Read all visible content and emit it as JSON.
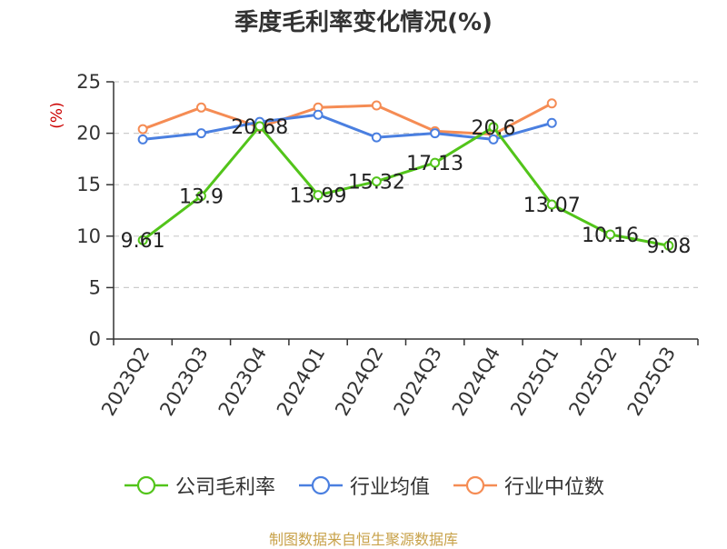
{
  "colors": {
    "axis": "#333333",
    "grid": "#cccccc",
    "ylabel": "#cc0000",
    "footer": "#c8a24a"
  },
  "chart_data": {
    "type": "line",
    "title": "季度毛利率变化情况(%)",
    "ylabel": "(%)",
    "xlabel": "",
    "ylim": [
      0,
      25
    ],
    "yticks": [
      0,
      5,
      10,
      15,
      20,
      25
    ],
    "grid": true,
    "legend_position": "bottom",
    "categories": [
      "2023Q2",
      "2023Q3",
      "2023Q4",
      "2024Q1",
      "2024Q2",
      "2024Q3",
      "2024Q4",
      "2025Q1",
      "2025Q2",
      "2025Q3"
    ],
    "series": [
      {
        "name": "公司毛利率",
        "color": "#52c41a",
        "values": [
          9.61,
          13.9,
          20.68,
          13.99,
          15.32,
          17.13,
          20.6,
          13.07,
          10.16,
          9.08
        ],
        "labels": [
          "9.61",
          "13.9",
          "20.68",
          "13.99",
          "15.32",
          "17.13",
          "20.6",
          "13.07",
          "10.16",
          "9.08"
        ]
      },
      {
        "name": "行业均值",
        "color": "#4a7fe0",
        "values": [
          19.4,
          20.0,
          21.1,
          21.8,
          19.6,
          20.0,
          19.4,
          21.0,
          null,
          null
        ]
      },
      {
        "name": "行业中位数",
        "color": "#f58c54",
        "values": [
          20.4,
          22.5,
          20.6,
          22.5,
          22.7,
          20.2,
          19.9,
          22.9,
          null,
          null
        ]
      }
    ]
  },
  "footer": {
    "source": "制图数据来自恒生聚源数据库"
  }
}
